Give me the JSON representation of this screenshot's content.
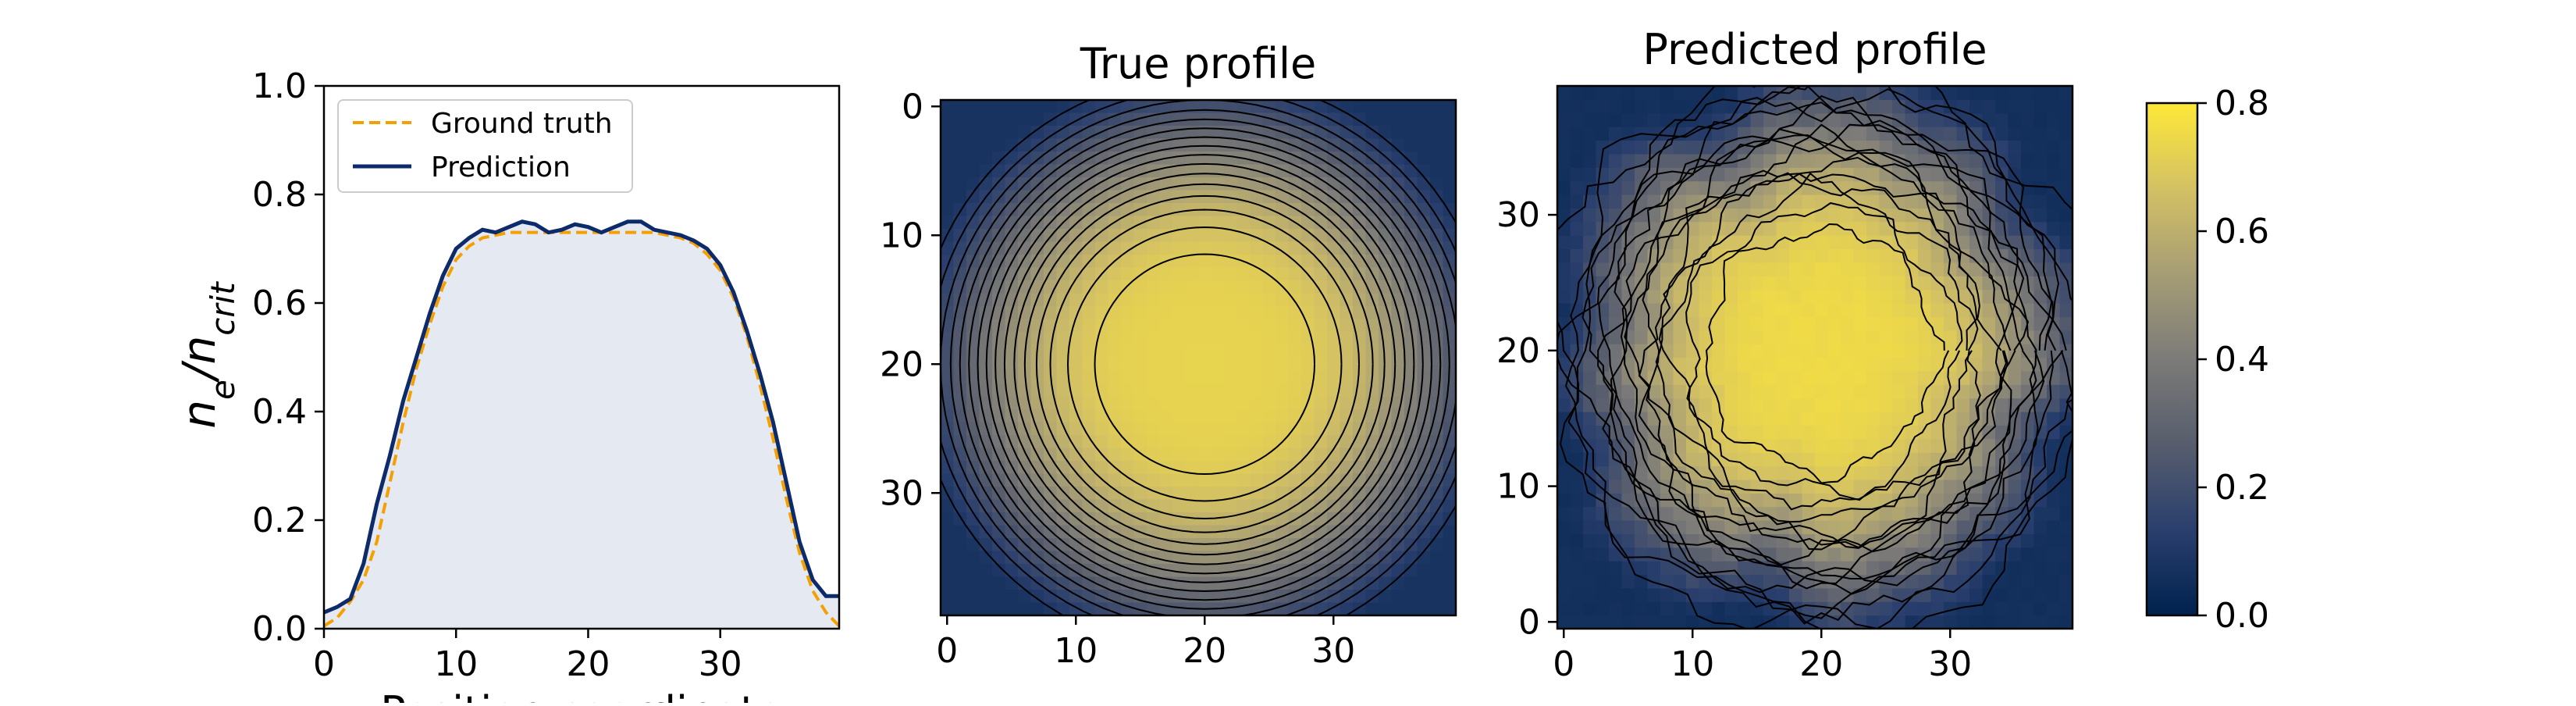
{
  "chart_data": [
    {
      "type": "area",
      "ylabel_base": "n",
      "ylabel_sub1": "e",
      "ylabel_sep": "/",
      "ylabel_sub2": "crit",
      "xlabel": "Position coordinate",
      "xlim": [
        0,
        39
      ],
      "ylim": [
        0,
        1.0
      ],
      "xticks": [
        "0",
        "10",
        "20",
        "30"
      ],
      "yticks": [
        "0.0",
        "0.2",
        "0.4",
        "0.6",
        "0.8",
        "1.0"
      ],
      "legend_position": "upper-left",
      "series": [
        {
          "name": "Ground truth",
          "color": "#f5a000",
          "style": "dashed",
          "x": [
            0,
            1,
            2,
            3,
            4,
            5,
            6,
            7,
            8,
            9,
            10,
            11,
            12,
            13,
            14,
            15,
            16,
            17,
            18,
            19,
            20,
            21,
            22,
            23,
            24,
            25,
            26,
            27,
            28,
            29,
            30,
            31,
            32,
            33,
            34,
            35,
            36,
            37,
            38,
            39
          ],
          "values": [
            0.005,
            0.02,
            0.05,
            0.09,
            0.16,
            0.27,
            0.38,
            0.48,
            0.56,
            0.63,
            0.68,
            0.705,
            0.72,
            0.725,
            0.73,
            0.73,
            0.73,
            0.73,
            0.73,
            0.73,
            0.73,
            0.73,
            0.73,
            0.73,
            0.73,
            0.73,
            0.725,
            0.72,
            0.71,
            0.69,
            0.66,
            0.61,
            0.54,
            0.45,
            0.35,
            0.24,
            0.14,
            0.07,
            0.03,
            0.005
          ]
        },
        {
          "name": "Prediction",
          "color": "#0d2a6b",
          "style": "solid",
          "fill": "#e5e9f1",
          "x": [
            0,
            1,
            2,
            3,
            4,
            5,
            6,
            7,
            8,
            9,
            10,
            11,
            12,
            13,
            14,
            15,
            16,
            17,
            18,
            19,
            20,
            21,
            22,
            23,
            24,
            25,
            26,
            27,
            28,
            29,
            30,
            31,
            32,
            33,
            34,
            35,
            36,
            37,
            38,
            39
          ],
          "values": [
            0.03,
            0.04,
            0.055,
            0.12,
            0.23,
            0.32,
            0.42,
            0.5,
            0.58,
            0.65,
            0.7,
            0.72,
            0.735,
            0.73,
            0.74,
            0.75,
            0.745,
            0.73,
            0.735,
            0.745,
            0.74,
            0.73,
            0.74,
            0.75,
            0.75,
            0.735,
            0.73,
            0.725,
            0.715,
            0.7,
            0.67,
            0.62,
            0.55,
            0.47,
            0.38,
            0.27,
            0.16,
            0.09,
            0.06,
            0.06
          ]
        }
      ]
    },
    {
      "type": "heatmap",
      "title": "True profile",
      "xlim": [
        0,
        39
      ],
      "ylim": [
        39,
        0
      ],
      "xticks": [
        "0",
        "10",
        "20",
        "30"
      ],
      "yticks": [
        "0",
        "10",
        "20",
        "30"
      ],
      "y_axis_direction": "downward",
      "grid_size": 40,
      "center": [
        20,
        20
      ],
      "profile": "super-gaussian",
      "peak_value": 0.73,
      "plateau_radius": 13,
      "edge_value_center_side": 0.35,
      "corner_value": 0.08,
      "contour_lines": true,
      "colormap": "cividis"
    },
    {
      "type": "heatmap",
      "title": "Predicted profile",
      "xlim": [
        0,
        39
      ],
      "ylim": [
        0,
        39
      ],
      "xticks": [
        "0",
        "10",
        "20",
        "30"
      ],
      "yticks": [
        "0",
        "10",
        "20",
        "30"
      ],
      "y_axis_direction": "upward",
      "grid_size": 40,
      "center": [
        20,
        20
      ],
      "profile": "super-gaussian (noisy)",
      "peak_value": 0.75,
      "plateau_radius": 12,
      "edge_value_center_side": 0.35,
      "corner_value": 0.06,
      "contour_lines": true,
      "colormap": "cividis"
    },
    {
      "type": "colorbar",
      "colormap": "cividis",
      "range": [
        0.0,
        0.8
      ],
      "ticks": [
        "0.0",
        "0.2",
        "0.4",
        "0.6",
        "0.8"
      ],
      "colors": [
        "#00224e",
        "#2a3f6d",
        "#575d6d",
        "#7c7b78",
        "#a69d75",
        "#d3c164",
        "#fee838"
      ]
    }
  ]
}
